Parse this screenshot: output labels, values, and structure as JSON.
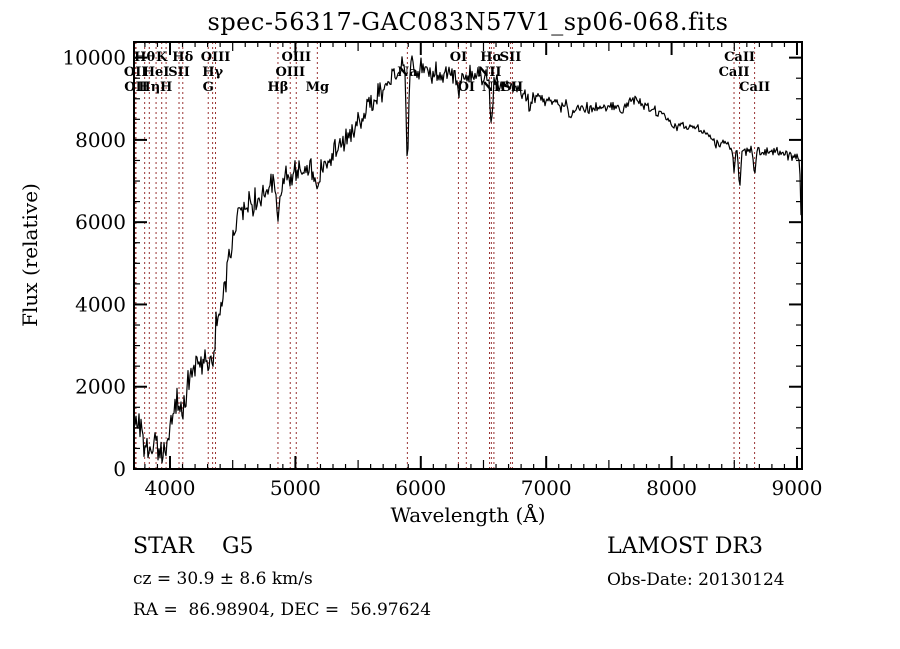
{
  "title": "spec-56317-GAC083N57V1_sp06-068.fits",
  "annotations": {
    "class_label": "STAR    G5",
    "cz": "cz = 30.9 ± 8.6 km/s",
    "radec": "RA =  86.98904, DEC =  56.97624",
    "survey": "LAMOST DR3",
    "obs_date": "Obs-Date: 20130124"
  },
  "chart_data": {
    "type": "line",
    "title": "spec-56317-GAC083N57V1_sp06-068.fits",
    "xlabel": "Wavelength (Å)",
    "ylabel": "Flux (relative)",
    "xlim": [
      3713,
      9040
    ],
    "ylim": [
      0,
      10380
    ],
    "x_major_ticks": [
      4000,
      5000,
      6000,
      7000,
      8000,
      9000
    ],
    "x_medium_step": 500,
    "x_minor_step": 100,
    "y_major_ticks": [
      0,
      2000,
      4000,
      6000,
      8000,
      10000
    ],
    "y_minor_step": 500,
    "grid": false,
    "legend": "none",
    "spectrum_color": "#000000",
    "line_marker_color": "#993333",
    "spectral_lines": [
      {
        "label": "Hθ",
        "wavelength": 3798,
        "row": 0
      },
      {
        "label": "K",
        "wavelength": 3934,
        "row": 0
      },
      {
        "label": "Hδ",
        "wavelength": 4102,
        "row": 0
      },
      {
        "label": "OIII",
        "wavelength": 4363,
        "row": 0
      },
      {
        "label": "OIII",
        "wavelength": 5007,
        "row": 0
      },
      {
        "label": "OI",
        "wavelength": 6300,
        "row": 0
      },
      {
        "label": "Hα",
        "wavelength": 6563,
        "row": 0
      },
      {
        "label": "SII",
        "wavelength": 6716,
        "row": 0
      },
      {
        "label": "CaII",
        "wavelength": 8542,
        "row": 0
      },
      {
        "label": "OII",
        "wavelength": 3726,
        "row": 1
      },
      {
        "label": "HeI",
        "wavelength": 3889,
        "row": 1
      },
      {
        "label": "SII",
        "wavelength": 4072,
        "row": 1
      },
      {
        "label": "Hγ",
        "wavelength": 4340,
        "row": 1
      },
      {
        "label": "OIII",
        "wavelength": 4959,
        "row": 1
      },
      {
        "label": "Na",
        "wavelength": 5893,
        "row": 1
      },
      {
        "label": "NII",
        "wavelength": 6548,
        "row": 1
      },
      {
        "label": "CaII",
        "wavelength": 8498,
        "row": 1
      },
      {
        "label": "OII",
        "wavelength": 3729,
        "row": 2
      },
      {
        "label": "Hη",
        "wavelength": 3835,
        "row": 2
      },
      {
        "label": "H",
        "wavelength": 3969,
        "row": 2
      },
      {
        "label": "G",
        "wavelength": 4305,
        "row": 2
      },
      {
        "label": "Hβ",
        "wavelength": 4861,
        "row": 2
      },
      {
        "label": "Mg",
        "wavelength": 5175,
        "row": 2
      },
      {
        "label": "OI",
        "wavelength": 6363,
        "row": 2
      },
      {
        "label": "NII",
        "wavelength": 6583,
        "row": 2
      },
      {
        "label": "SII",
        "wavelength": 6731,
        "row": 2
      },
      {
        "label": "CaII",
        "wavelength": 8662,
        "row": 2
      }
    ],
    "series": [
      {
        "name": "flux",
        "envelope": [
          [
            3713,
            900
          ],
          [
            3760,
            1200
          ],
          [
            3800,
            400
          ],
          [
            3845,
            250
          ],
          [
            3885,
            600
          ],
          [
            3925,
            400
          ],
          [
            3965,
            500
          ],
          [
            4005,
            1300
          ],
          [
            4065,
            1600
          ],
          [
            4125,
            1900
          ],
          [
            4185,
            2500
          ],
          [
            4245,
            2700
          ],
          [
            4305,
            2900
          ],
          [
            4365,
            3500
          ],
          [
            4425,
            4200
          ],
          [
            4475,
            5200
          ],
          [
            4535,
            6100
          ],
          [
            4595,
            6400
          ],
          [
            4665,
            6500
          ],
          [
            4745,
            6700
          ],
          [
            4825,
            6900
          ],
          [
            4905,
            7000
          ],
          [
            4985,
            7150
          ],
          [
            5065,
            7300
          ],
          [
            5145,
            7300
          ],
          [
            5225,
            7450
          ],
          [
            5305,
            7700
          ],
          [
            5385,
            7900
          ],
          [
            5465,
            8200
          ],
          [
            5545,
            8600
          ],
          [
            5625,
            9000
          ],
          [
            5705,
            9300
          ],
          [
            5785,
            9600
          ],
          [
            5865,
            9750
          ],
          [
            5945,
            9750
          ],
          [
            6025,
            9750
          ],
          [
            6105,
            9600
          ],
          [
            6185,
            9650
          ],
          [
            6265,
            9600
          ],
          [
            6345,
            9550
          ],
          [
            6425,
            9600
          ],
          [
            6505,
            9500
          ],
          [
            6585,
            9400
          ],
          [
            6665,
            9350
          ],
          [
            6745,
            9250
          ],
          [
            6825,
            9100
          ],
          [
            6905,
            9000
          ],
          [
            6985,
            9000
          ],
          [
            7065,
            8900
          ],
          [
            7145,
            8850
          ],
          [
            7225,
            8800
          ],
          [
            7305,
            8750
          ],
          [
            7385,
            8750
          ],
          [
            7465,
            8800
          ],
          [
            7545,
            8850
          ],
          [
            7625,
            8900
          ],
          [
            7705,
            8950
          ],
          [
            7785,
            8850
          ],
          [
            7865,
            8700
          ],
          [
            7945,
            8600
          ],
          [
            8025,
            8300
          ],
          [
            8105,
            8300
          ],
          [
            8185,
            8350
          ],
          [
            8265,
            8200
          ],
          [
            8345,
            7950
          ],
          [
            8425,
            7900
          ],
          [
            8505,
            7800
          ],
          [
            8585,
            7750
          ],
          [
            8665,
            7750
          ],
          [
            8745,
            7700
          ],
          [
            8825,
            7750
          ],
          [
            8905,
            7650
          ],
          [
            8985,
            7600
          ],
          [
            9040,
            7500
          ]
        ],
        "absorption_dips": [
          [
            4102,
            12,
            500
          ],
          [
            4305,
            20,
            400
          ],
          [
            4340,
            12,
            500
          ],
          [
            4861,
            12,
            700
          ],
          [
            5175,
            18,
            400
          ],
          [
            5893,
            9,
            2100
          ],
          [
            6300,
            8,
            400
          ],
          [
            6563,
            9,
            900
          ],
          [
            6870,
            10,
            350
          ],
          [
            7190,
            8,
            250
          ],
          [
            7600,
            10,
            300
          ],
          [
            8498,
            9,
            550
          ],
          [
            8542,
            9,
            850
          ],
          [
            8662,
            9,
            550
          ],
          [
            9032,
            5,
            1300
          ]
        ],
        "noise_amplitude": [
          [
            3713,
            520
          ],
          [
            4000,
            500
          ],
          [
            4300,
            480
          ],
          [
            4600,
            430
          ],
          [
            4900,
            400
          ],
          [
            5200,
            380
          ],
          [
            5500,
            360
          ],
          [
            5800,
            330
          ],
          [
            6100,
            300
          ],
          [
            6400,
            270
          ],
          [
            6700,
            250
          ],
          [
            7000,
            220
          ],
          [
            7300,
            190
          ],
          [
            7600,
            180
          ],
          [
            7900,
            170
          ],
          [
            8200,
            160
          ],
          [
            8500,
            150
          ],
          [
            8800,
            140
          ],
          [
            9040,
            140
          ]
        ],
        "noise_seed": 20130124
      }
    ]
  }
}
